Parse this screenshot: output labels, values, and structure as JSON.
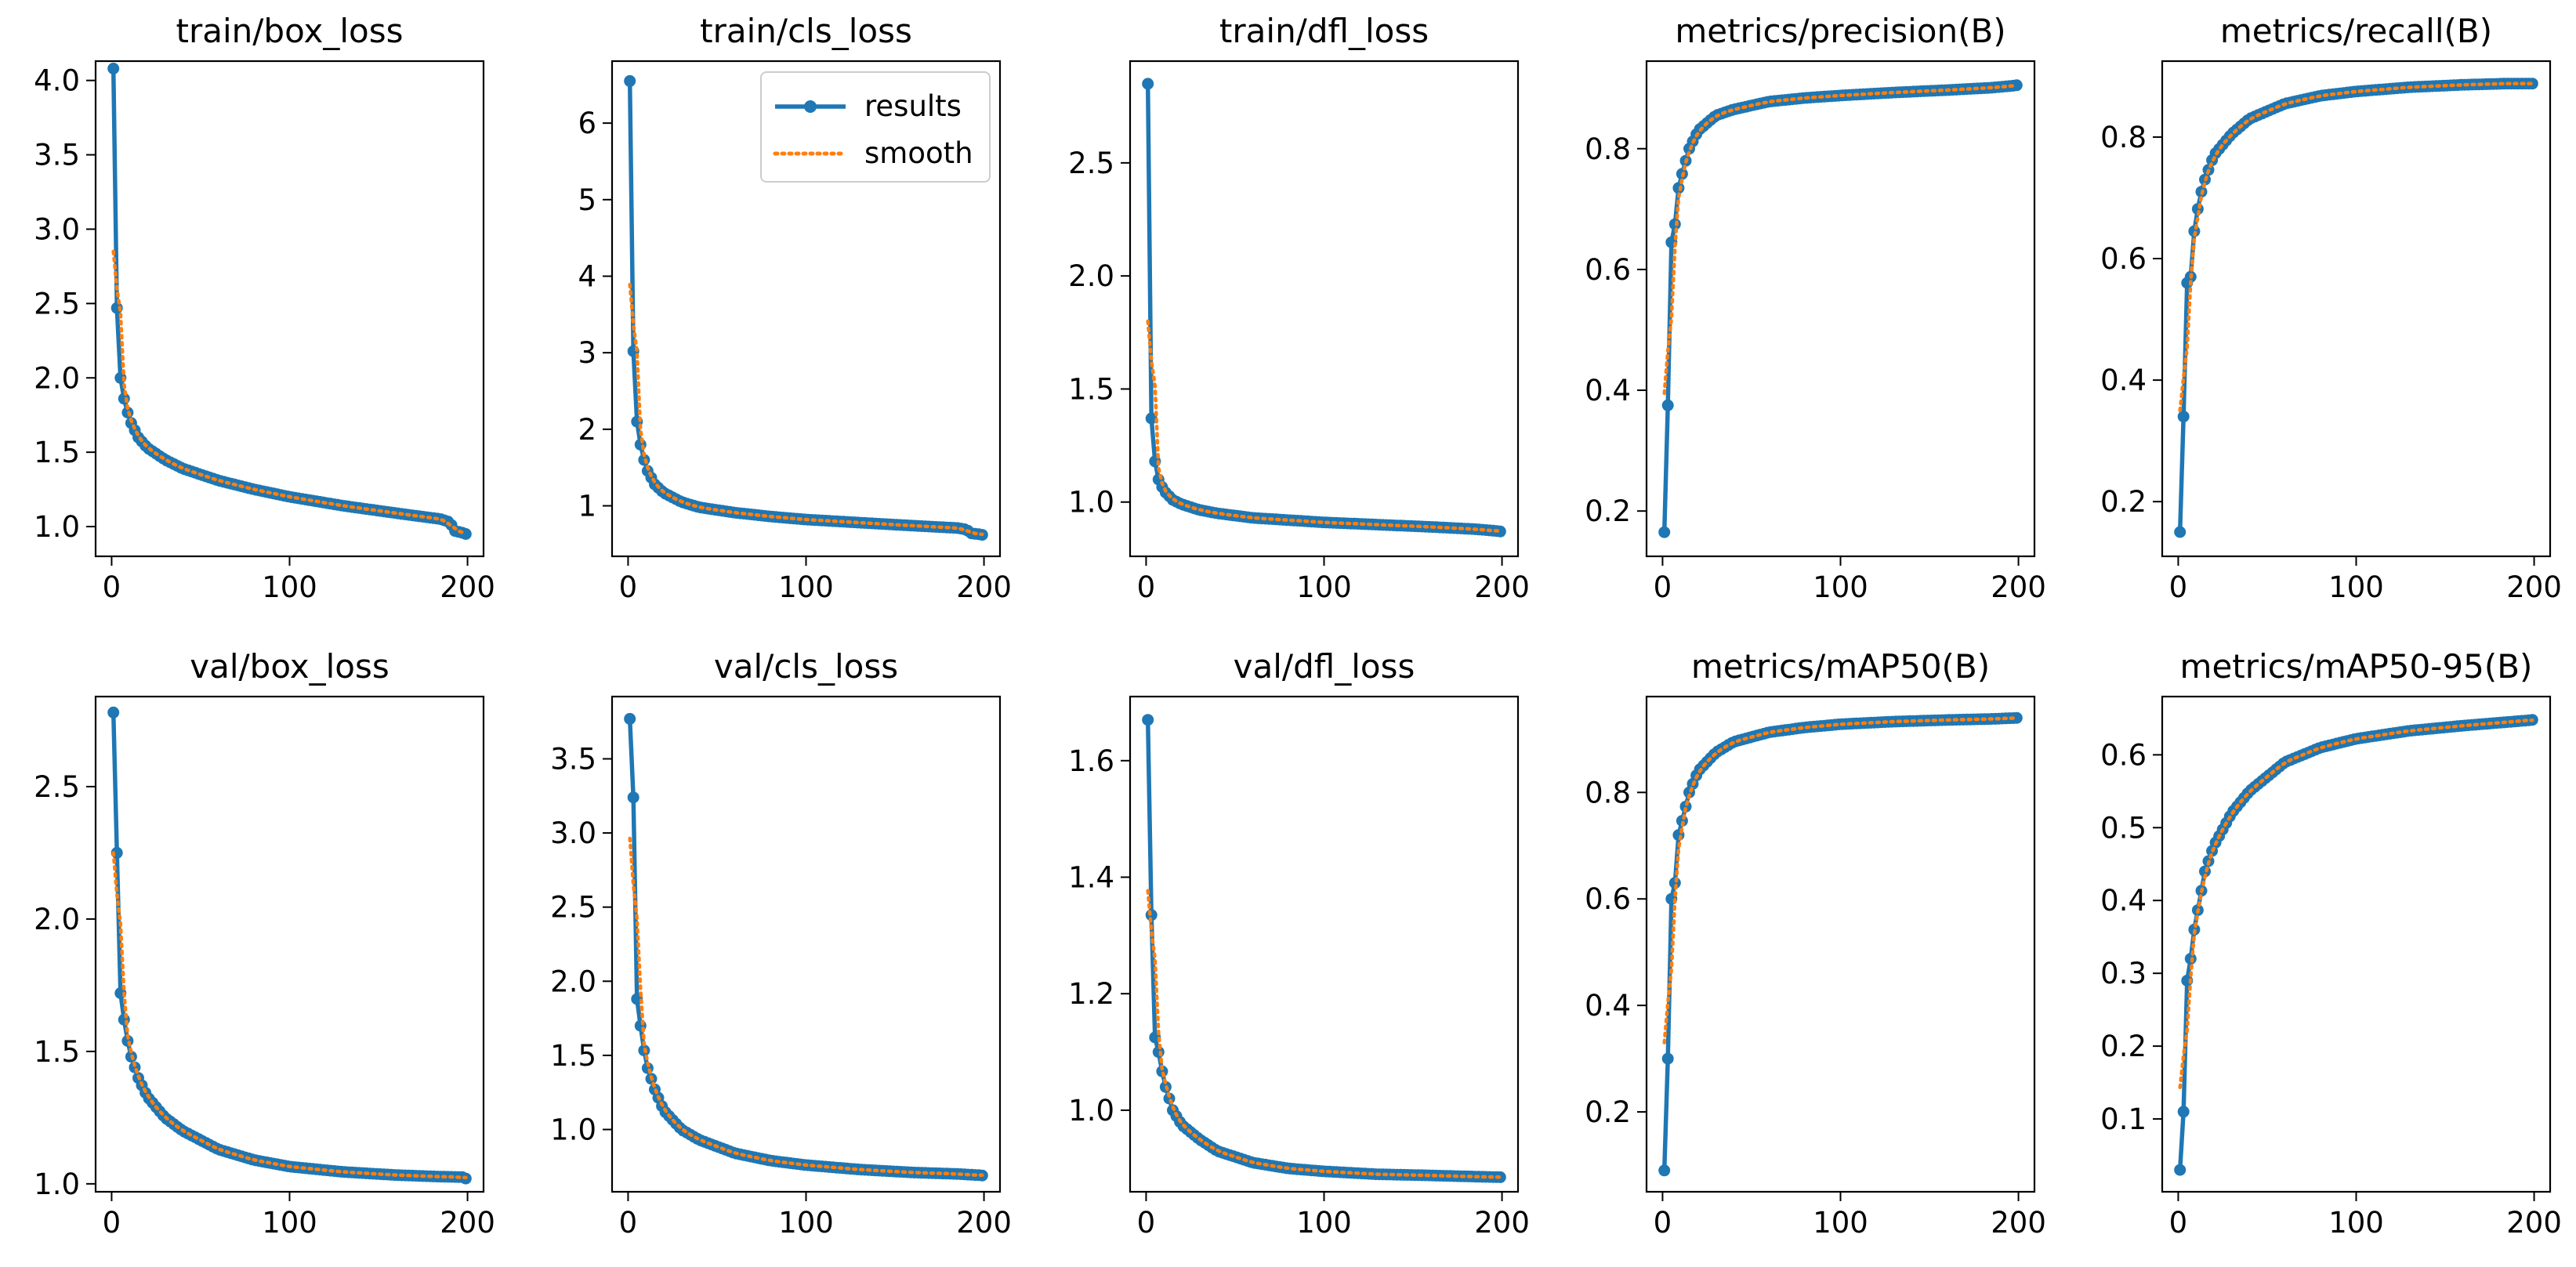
{
  "chart_data": {
    "type": "line",
    "series_meta": [
      {
        "name": "results",
        "color": "#1f77b4",
        "style": "solid",
        "marker": "circle"
      },
      {
        "name": "smooth",
        "color": "#ff7f0e",
        "style": "dotted",
        "marker": "none"
      }
    ],
    "legend": {
      "placement": "top-right",
      "panel": 1
    },
    "grid": false,
    "panels": [
      {
        "title": "train/box_loss",
        "xlim": [
          -9,
          209
        ],
        "ylim": [
          0.8,
          4.13
        ],
        "xticks": [
          0,
          100,
          200
        ],
        "yticks": [
          1.0,
          1.5,
          2.0,
          2.5,
          3.0,
          3.5,
          4.0
        ],
        "ytick_labels": [
          "1.0",
          "1.5",
          "2.0",
          "2.5",
          "3.0",
          "3.5",
          "4.0"
        ],
        "curve": {
          "start": 4.08,
          "end": 0.95,
          "knots": [
            [
              1,
              4.08
            ],
            [
              2,
              2.8
            ],
            [
              3,
              2.47
            ],
            [
              4,
              2.2
            ],
            [
              5,
              2.0
            ],
            [
              7,
              1.86
            ],
            [
              10,
              1.72
            ],
            [
              15,
              1.6
            ],
            [
              20,
              1.53
            ],
            [
              30,
              1.45
            ],
            [
              40,
              1.39
            ],
            [
              60,
              1.31
            ],
            [
              80,
              1.25
            ],
            [
              100,
              1.2
            ],
            [
              130,
              1.14
            ],
            [
              160,
              1.09
            ],
            [
              185,
              1.05
            ],
            [
              190,
              1.03
            ],
            [
              193,
              0.97
            ],
            [
              200,
              0.95
            ]
          ]
        }
      },
      {
        "title": "train/cls_loss",
        "xlim": [
          -9,
          209
        ],
        "ylim": [
          0.34,
          6.81
        ],
        "xticks": [
          0,
          100,
          200
        ],
        "yticks": [
          1,
          2,
          3,
          4,
          5,
          6
        ],
        "ytick_labels": [
          "1",
          "2",
          "3",
          "4",
          "5",
          "6"
        ],
        "curve": {
          "start": 6.55,
          "end": 0.62,
          "knots": [
            [
              1,
              6.55
            ],
            [
              2,
              3.62
            ],
            [
              3,
              3.02
            ],
            [
              4,
              2.52
            ],
            [
              5,
              2.1
            ],
            [
              7,
              1.8
            ],
            [
              10,
              1.5
            ],
            [
              15,
              1.28
            ],
            [
              20,
              1.17
            ],
            [
              30,
              1.05
            ],
            [
              40,
              0.98
            ],
            [
              60,
              0.91
            ],
            [
              80,
              0.86
            ],
            [
              100,
              0.82
            ],
            [
              130,
              0.78
            ],
            [
              160,
              0.74
            ],
            [
              185,
              0.71
            ],
            [
              190,
              0.69
            ],
            [
              193,
              0.64
            ],
            [
              200,
              0.62
            ]
          ]
        }
      },
      {
        "title": "train/dfl_loss",
        "xlim": [
          -9,
          209
        ],
        "ylim": [
          0.76,
          2.95
        ],
        "xticks": [
          0,
          100,
          200
        ],
        "yticks": [
          1.0,
          1.5,
          2.0,
          2.5
        ],
        "ytick_labels": [
          "1.0",
          "1.5",
          "2.0",
          "2.5"
        ],
        "curve": {
          "start": 2.85,
          "end": 0.87,
          "knots": [
            [
              1,
              2.85
            ],
            [
              2,
              1.55
            ],
            [
              3,
              1.37
            ],
            [
              4,
              1.26
            ],
            [
              5,
              1.18
            ],
            [
              7,
              1.1
            ],
            [
              10,
              1.05
            ],
            [
              15,
              1.01
            ],
            [
              20,
              0.99
            ],
            [
              30,
              0.965
            ],
            [
              40,
              0.95
            ],
            [
              60,
              0.93
            ],
            [
              80,
              0.92
            ],
            [
              100,
              0.91
            ],
            [
              130,
              0.9
            ],
            [
              160,
              0.89
            ],
            [
              185,
              0.88
            ],
            [
              200,
              0.87
            ]
          ]
        }
      },
      {
        "title": "metrics/precision(B)",
        "xlim": [
          -9,
          209
        ],
        "ylim": [
          0.125,
          0.945
        ],
        "xticks": [
          0,
          100,
          200
        ],
        "yticks": [
          0.2,
          0.4,
          0.6,
          0.8
        ],
        "ytick_labels": [
          "0.2",
          "0.4",
          "0.6",
          "0.8"
        ],
        "curve": {
          "start": 0.165,
          "end": 0.905,
          "knots": [
            [
              1,
              0.165
            ],
            [
              2,
              0.25
            ],
            [
              3,
              0.375
            ],
            [
              4,
              0.5
            ],
            [
              5,
              0.645
            ],
            [
              7,
              0.675
            ],
            [
              9,
              0.735
            ],
            [
              12,
              0.77
            ],
            [
              15,
              0.8
            ],
            [
              20,
              0.83
            ],
            [
              30,
              0.855
            ],
            [
              40,
              0.865
            ],
            [
              60,
              0.878
            ],
            [
              80,
              0.884
            ],
            [
              100,
              0.888
            ],
            [
              130,
              0.893
            ],
            [
              160,
              0.897
            ],
            [
              185,
              0.901
            ],
            [
              200,
              0.905
            ]
          ]
        }
      },
      {
        "title": "metrics/recall(B)",
        "xlim": [
          -9,
          209
        ],
        "ylim": [
          0.11,
          0.925
        ],
        "xticks": [
          0,
          100,
          200
        ],
        "yticks": [
          0.2,
          0.4,
          0.6,
          0.8
        ],
        "ytick_labels": [
          "0.2",
          "0.4",
          "0.6",
          "0.8"
        ],
        "curve": {
          "start": 0.15,
          "end": 0.888,
          "knots": [
            [
              1,
              0.15
            ],
            [
              2,
              0.18
            ],
            [
              3,
              0.34
            ],
            [
              4,
              0.395
            ],
            [
              5,
              0.56
            ],
            [
              7,
              0.57
            ],
            [
              9,
              0.645
            ],
            [
              12,
              0.7
            ],
            [
              15,
              0.73
            ],
            [
              20,
              0.77
            ],
            [
              30,
              0.805
            ],
            [
              40,
              0.83
            ],
            [
              60,
              0.855
            ],
            [
              80,
              0.868
            ],
            [
              100,
              0.875
            ],
            [
              130,
              0.882
            ],
            [
              160,
              0.886
            ],
            [
              185,
              0.888
            ],
            [
              200,
              0.888
            ]
          ]
        }
      },
      {
        "title": "val/box_loss",
        "xlim": [
          -9,
          209
        ],
        "ylim": [
          0.97,
          2.84
        ],
        "xticks": [
          0,
          100,
          200
        ],
        "yticks": [
          1.0,
          1.5,
          2.0,
          2.5
        ],
        "ytick_labels": [
          "1.0",
          "1.5",
          "2.0",
          "2.5"
        ],
        "curve": {
          "start": 2.78,
          "end": 1.02,
          "knots": [
            [
              1,
              2.78
            ],
            [
              2,
              2.58
            ],
            [
              3,
              2.25
            ],
            [
              4,
              1.96
            ],
            [
              5,
              1.72
            ],
            [
              7,
              1.62
            ],
            [
              10,
              1.5
            ],
            [
              15,
              1.4
            ],
            [
              20,
              1.33
            ],
            [
              30,
              1.25
            ],
            [
              40,
              1.2
            ],
            [
              60,
              1.13
            ],
            [
              80,
              1.09
            ],
            [
              100,
              1.065
            ],
            [
              130,
              1.045
            ],
            [
              160,
              1.033
            ],
            [
              185,
              1.027
            ],
            [
              200,
              1.025
            ]
          ]
        }
      },
      {
        "title": "val/cls_loss",
        "xlim": [
          -9,
          209
        ],
        "ylim": [
          0.58,
          3.92
        ],
        "xticks": [
          0,
          100,
          200
        ],
        "yticks": [
          1.0,
          1.5,
          2.0,
          2.5,
          3.0,
          3.5
        ],
        "ytick_labels": [
          "1.0",
          "1.5",
          "2.0",
          "2.5",
          "3.0",
          "3.5"
        ],
        "curve": {
          "start": 3.77,
          "end": 0.69,
          "knots": [
            [
              1,
              3.77
            ],
            [
              2,
              3.58
            ],
            [
              3,
              3.24
            ],
            [
              4,
              2.22
            ],
            [
              5,
              1.88
            ],
            [
              7,
              1.7
            ],
            [
              10,
              1.45
            ],
            [
              15,
              1.27
            ],
            [
              20,
              1.13
            ],
            [
              30,
              1.0
            ],
            [
              40,
              0.93
            ],
            [
              60,
              0.84
            ],
            [
              80,
              0.79
            ],
            [
              100,
              0.76
            ],
            [
              130,
              0.73
            ],
            [
              160,
              0.71
            ],
            [
              185,
              0.7
            ],
            [
              200,
              0.69
            ]
          ]
        }
      },
      {
        "title": "val/dfl_loss",
        "xlim": [
          -9,
          209
        ],
        "ylim": [
          0.86,
          1.71
        ],
        "xticks": [
          0,
          100,
          200
        ],
        "yticks": [
          1.0,
          1.2,
          1.4,
          1.6
        ],
        "ytick_labels": [
          "1.0",
          "1.2",
          "1.4",
          "1.6"
        ],
        "curve": {
          "start": 1.67,
          "end": 0.885,
          "knots": [
            [
              1,
              1.67
            ],
            [
              2,
              1.495
            ],
            [
              3,
              1.335
            ],
            [
              4,
              1.21
            ],
            [
              5,
              1.125
            ],
            [
              7,
              1.1
            ],
            [
              10,
              1.05
            ],
            [
              15,
              1.0
            ],
            [
              20,
              0.975
            ],
            [
              30,
              0.95
            ],
            [
              40,
              0.93
            ],
            [
              60,
              0.91
            ],
            [
              80,
              0.9
            ],
            [
              100,
              0.895
            ],
            [
              130,
              0.89
            ],
            [
              160,
              0.888
            ],
            [
              185,
              0.886
            ],
            [
              200,
              0.885
            ]
          ]
        }
      },
      {
        "title": "metrics/mAP50(B)",
        "xlim": [
          -9,
          209
        ],
        "ylim": [
          0.05,
          0.98
        ],
        "xticks": [
          0,
          100,
          200
        ],
        "yticks": [
          0.2,
          0.4,
          0.6,
          0.8
        ],
        "ytick_labels": [
          "0.2",
          "0.4",
          "0.6",
          "0.8"
        ],
        "curve": {
          "start": 0.09,
          "end": 0.94,
          "knots": [
            [
              1,
              0.09
            ],
            [
              2,
              0.145
            ],
            [
              3,
              0.3
            ],
            [
              4,
              0.415
            ],
            [
              5,
              0.6
            ],
            [
              7,
              0.63
            ],
            [
              9,
              0.72
            ],
            [
              12,
              0.76
            ],
            [
              15,
              0.8
            ],
            [
              20,
              0.84
            ],
            [
              30,
              0.875
            ],
            [
              40,
              0.895
            ],
            [
              60,
              0.913
            ],
            [
              80,
              0.922
            ],
            [
              100,
              0.928
            ],
            [
              130,
              0.933
            ],
            [
              160,
              0.936
            ],
            [
              185,
              0.938
            ],
            [
              200,
              0.94
            ]
          ]
        }
      },
      {
        "title": "metrics/mAP50-95(B)",
        "xlim": [
          -9,
          209
        ],
        "ylim": [
          0.0,
          0.68
        ],
        "xticks": [
          0,
          100,
          200
        ],
        "yticks": [
          0.1,
          0.2,
          0.3,
          0.4,
          0.5,
          0.6
        ],
        "ytick_labels": [
          "0.1",
          "0.2",
          "0.3",
          "0.4",
          "0.5",
          "0.6"
        ],
        "curve": {
          "start": 0.03,
          "end": 0.648,
          "knots": [
            [
              1,
              0.03
            ],
            [
              2,
              0.05
            ],
            [
              3,
              0.11
            ],
            [
              4,
              0.17
            ],
            [
              5,
              0.29
            ],
            [
              7,
              0.32
            ],
            [
              9,
              0.36
            ],
            [
              12,
              0.4
            ],
            [
              15,
              0.44
            ],
            [
              20,
              0.475
            ],
            [
              30,
              0.52
            ],
            [
              40,
              0.55
            ],
            [
              60,
              0.59
            ],
            [
              80,
              0.61
            ],
            [
              100,
              0.622
            ],
            [
              130,
              0.633
            ],
            [
              160,
              0.64
            ],
            [
              185,
              0.645
            ],
            [
              200,
              0.648
            ]
          ]
        }
      }
    ]
  }
}
